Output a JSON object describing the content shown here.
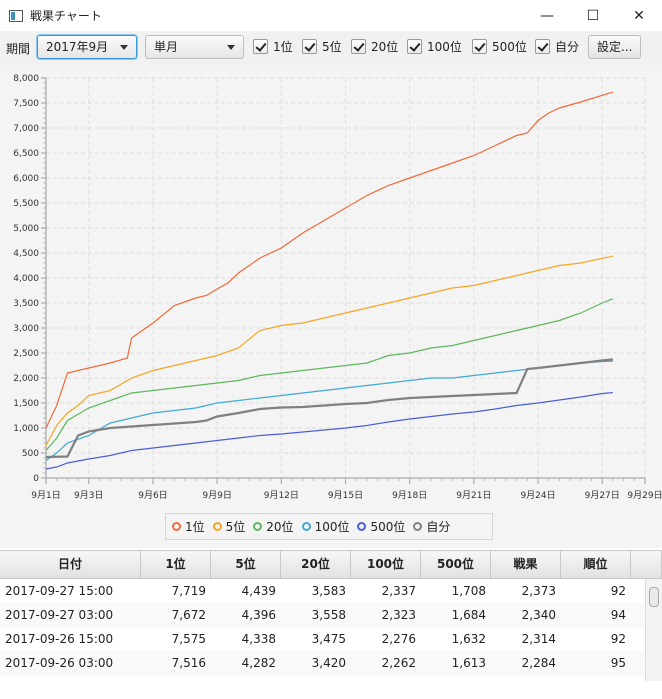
{
  "window": {
    "title": "戦果チャート",
    "minimize": "—",
    "maximize": "☐",
    "close": "✕"
  },
  "toolbar": {
    "period_label": "期間",
    "month_value": "2017年9月",
    "unit_value": "単月",
    "checks": [
      {
        "label": "1位",
        "checked": true
      },
      {
        "label": "5位",
        "checked": true
      },
      {
        "label": "20位",
        "checked": true
      },
      {
        "label": "100位",
        "checked": true
      },
      {
        "label": "500位",
        "checked": true
      },
      {
        "label": "自分",
        "checked": true
      }
    ],
    "settings_label": "設定..."
  },
  "chart_data": {
    "type": "line",
    "xlabel": "",
    "ylabel": "",
    "xlim": [
      1,
      29
    ],
    "ylim": [
      0,
      8000
    ],
    "grid": true,
    "legend_position": "bottom",
    "x_ticks": [
      "9月1日",
      "9月3日",
      "9月6日",
      "9月9日",
      "9月12日",
      "9月15日",
      "9月18日",
      "9月21日",
      "9月24日",
      "9月27日",
      "9月29日"
    ],
    "x_tick_values": [
      1,
      3,
      6,
      9,
      12,
      15,
      18,
      21,
      24,
      27,
      29
    ],
    "y_ticks": [
      "0",
      "500",
      "1,000",
      "1,500",
      "2,000",
      "2,500",
      "3,000",
      "3,500",
      "4,000",
      "4,500",
      "5,000",
      "5,500",
      "6,000",
      "6,500",
      "7,000",
      "7,500",
      "8,000"
    ],
    "series": [
      {
        "name": "1位",
        "color": "#f06a3a",
        "x": [
          1,
          1.5,
          2,
          3,
          4,
          4.8,
          5,
          6,
          7,
          8,
          8.5,
          9,
          9.5,
          10,
          11,
          12,
          13,
          14,
          15,
          16,
          17,
          18,
          19,
          20,
          21,
          22,
          23,
          23.5,
          24,
          24.5,
          25,
          26,
          27.5
        ],
        "y": [
          1000,
          1450,
          2100,
          2200,
          2300,
          2400,
          2800,
          3100,
          3450,
          3600,
          3650,
          3780,
          3900,
          4100,
          4400,
          4600,
          4900,
          5150,
          5400,
          5650,
          5850,
          6000,
          6150,
          6300,
          6450,
          6650,
          6850,
          6900,
          7150,
          7300,
          7400,
          7520,
          7719
        ]
      },
      {
        "name": "5位",
        "color": "#f5a623",
        "x": [
          1,
          1.5,
          2,
          2.5,
          3,
          4,
          5,
          6,
          7,
          8,
          9,
          10,
          11,
          12,
          13,
          14,
          15,
          16,
          17,
          18,
          19,
          20,
          21,
          22,
          23,
          24,
          25,
          26,
          27.5
        ],
        "y": [
          650,
          1050,
          1300,
          1450,
          1650,
          1750,
          2000,
          2150,
          2250,
          2350,
          2450,
          2600,
          2950,
          3050,
          3100,
          3200,
          3300,
          3400,
          3500,
          3600,
          3700,
          3800,
          3850,
          3950,
          4050,
          4150,
          4250,
          4300,
          4439
        ]
      },
      {
        "name": "20位",
        "color": "#5cb85c",
        "x": [
          1,
          1.5,
          2,
          3,
          4,
          5,
          6,
          7,
          8,
          9,
          10,
          11,
          12,
          13,
          14,
          15,
          16,
          17,
          18,
          19,
          20,
          21,
          22,
          23,
          24,
          25,
          26,
          27,
          27.5
        ],
        "y": [
          550,
          800,
          1150,
          1400,
          1550,
          1700,
          1750,
          1800,
          1850,
          1900,
          1950,
          2050,
          2100,
          2150,
          2200,
          2250,
          2300,
          2450,
          2500,
          2600,
          2650,
          2750,
          2850,
          2950,
          3050,
          3150,
          3300,
          3500,
          3583
        ]
      },
      {
        "name": "100位",
        "color": "#40a9d6",
        "x": [
          1,
          1.5,
          2,
          3,
          4,
          5,
          6,
          7,
          8,
          9,
          10,
          11,
          12,
          13,
          14,
          15,
          16,
          17,
          18,
          19,
          20,
          21,
          22,
          23,
          24,
          25,
          26,
          27,
          27.5
        ],
        "y": [
          350,
          500,
          700,
          850,
          1100,
          1200,
          1300,
          1350,
          1400,
          1500,
          1550,
          1600,
          1650,
          1700,
          1750,
          1800,
          1850,
          1900,
          1950,
          2000,
          2000,
          2050,
          2100,
          2150,
          2200,
          2250,
          2300,
          2330,
          2337
        ]
      },
      {
        "name": "500位",
        "color": "#4a5fd6",
        "x": [
          1,
          1.5,
          2,
          3,
          4,
          5,
          6,
          7,
          8,
          9,
          10,
          11,
          12,
          13,
          14,
          15,
          16,
          17,
          18,
          19,
          20,
          21,
          22,
          23,
          24,
          25,
          26,
          27,
          27.5
        ],
        "y": [
          180,
          220,
          300,
          380,
          450,
          550,
          600,
          650,
          700,
          750,
          800,
          850,
          880,
          920,
          960,
          1000,
          1050,
          1120,
          1180,
          1230,
          1280,
          1320,
          1380,
          1450,
          1500,
          1560,
          1620,
          1690,
          1708
        ]
      },
      {
        "name": "自分",
        "color": "#808080",
        "x": [
          1,
          2,
          2.5,
          3,
          4,
          5,
          6,
          7,
          8,
          8.5,
          9,
          10,
          11,
          12,
          13,
          14,
          15,
          16,
          17,
          18,
          19,
          20,
          21,
          22,
          23,
          23.5,
          24,
          25,
          26,
          27,
          27.5
        ],
        "y": [
          420,
          430,
          850,
          930,
          1000,
          1030,
          1060,
          1090,
          1120,
          1150,
          1230,
          1300,
          1380,
          1410,
          1420,
          1450,
          1480,
          1500,
          1560,
          1600,
          1620,
          1640,
          1660,
          1680,
          1700,
          2180,
          2200,
          2250,
          2300,
          2350,
          2373
        ]
      }
    ]
  },
  "table": {
    "headers": [
      "日付",
      "1位",
      "5位",
      "20位",
      "100位",
      "500位",
      "戦果",
      "順位"
    ],
    "rows": [
      [
        "2017-09-27 15:00",
        "7,719",
        "4,439",
        "3,583",
        "2,337",
        "1,708",
        "2,373",
        "92"
      ],
      [
        "2017-09-27 03:00",
        "7,672",
        "4,396",
        "3,558",
        "2,323",
        "1,684",
        "2,340",
        "94"
      ],
      [
        "2017-09-26 15:00",
        "7,575",
        "4,338",
        "3,475",
        "2,276",
        "1,632",
        "2,314",
        "92"
      ],
      [
        "2017-09-26 03:00",
        "7,516",
        "4,282",
        "3,420",
        "2,262",
        "1,613",
        "2,284",
        "95"
      ],
      [
        "",
        "",
        "",
        "",
        "",
        "",
        "",
        ""
      ]
    ]
  }
}
